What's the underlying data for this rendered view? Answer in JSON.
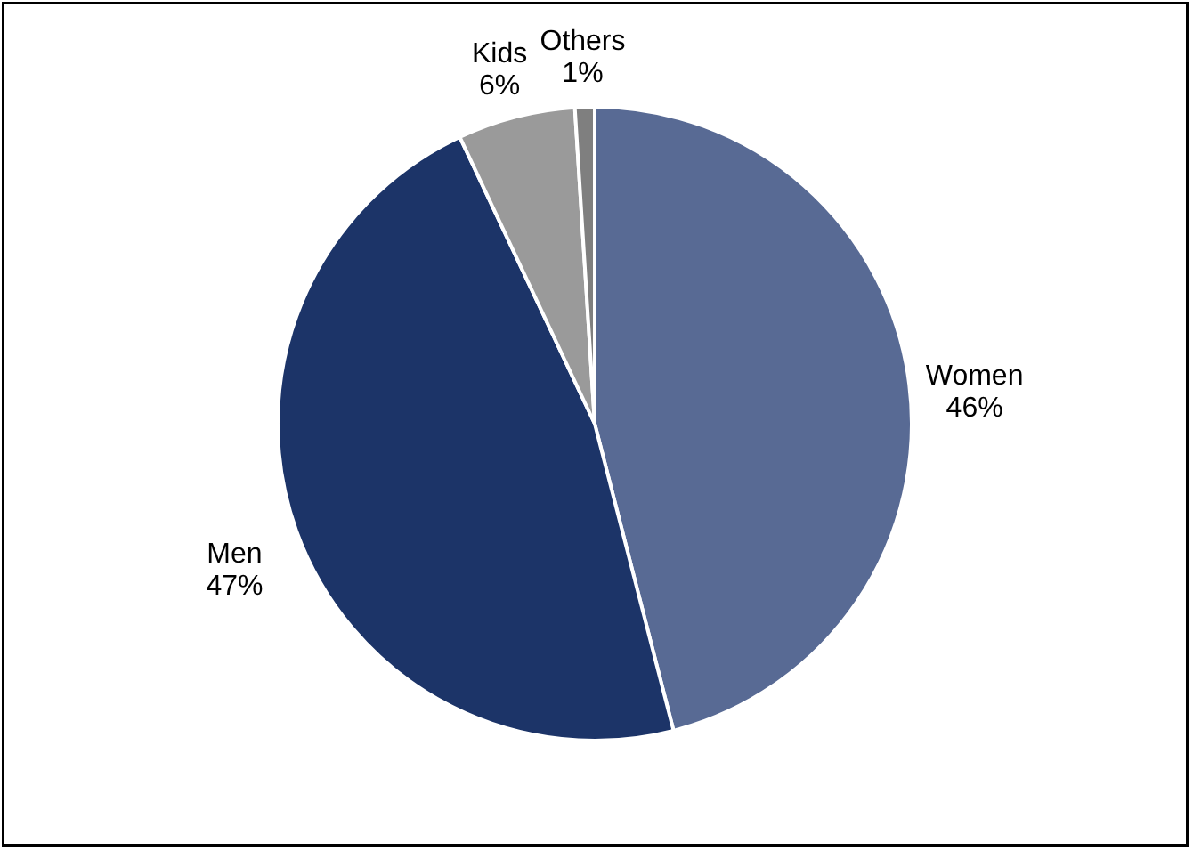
{
  "chart_data": {
    "type": "pie",
    "categories": [
      "Women",
      "Men",
      "Kids",
      "Others"
    ],
    "values": [
      46,
      47,
      6,
      1
    ],
    "value_labels": [
      "46%",
      "47%",
      "6%",
      "1%"
    ],
    "colors": [
      "#586a94",
      "#1c3468",
      "#9a9a9a",
      "#7f7f7f"
    ]
  }
}
